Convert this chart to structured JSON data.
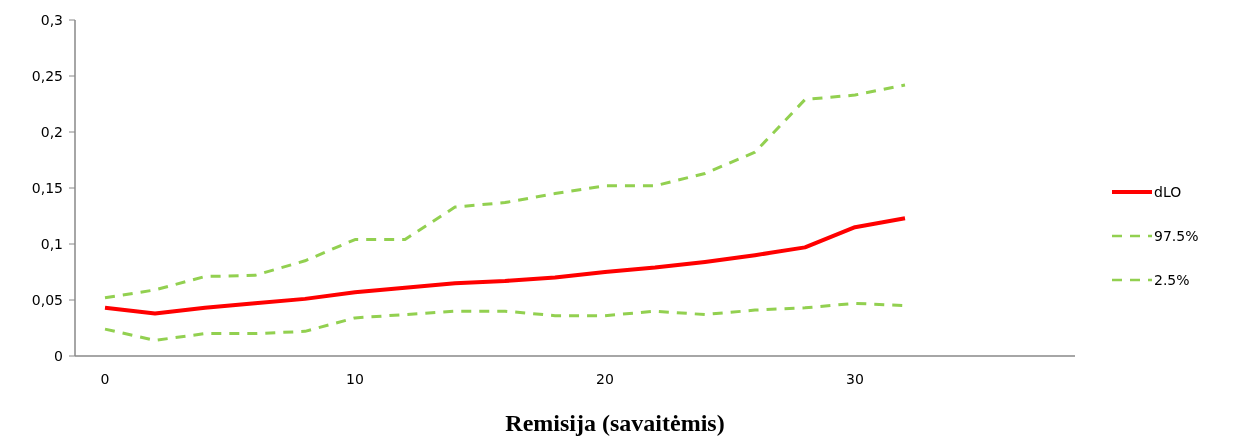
{
  "chart_data": {
    "type": "line",
    "xlabel": "Remisija (savaitėmis)",
    "x": [
      0,
      2,
      4,
      6,
      8,
      10,
      12,
      14,
      16,
      18,
      20,
      22,
      24,
      26,
      28,
      30,
      32
    ],
    "series": [
      {
        "name": "dLO",
        "color": "#ff0000",
        "line_style": "solid",
        "values": [
          0.043,
          0.038,
          0.043,
          0.047,
          0.051,
          0.057,
          0.061,
          0.065,
          0.067,
          0.07,
          0.075,
          0.079,
          0.084,
          0.09,
          0.097,
          0.115,
          0.123
        ]
      },
      {
        "name": "97.5%",
        "color": "#92d050",
        "line_style": "dashed",
        "values": [
          0.052,
          0.059,
          0.071,
          0.072,
          0.085,
          0.104,
          0.104,
          0.133,
          0.137,
          0.145,
          0.152,
          0.152,
          0.163,
          0.182,
          0.229,
          0.233,
          0.242
        ]
      },
      {
        "name": "2.5%",
        "color": "#92d050",
        "line_style": "dashed",
        "values": [
          0.024,
          0.014,
          0.02,
          0.02,
          0.022,
          0.034,
          0.037,
          0.04,
          0.04,
          0.036,
          0.036,
          0.04,
          0.037,
          0.041,
          0.043,
          0.047,
          0.045
        ]
      }
    ],
    "xlim": [
      -1.2,
      38.8
    ],
    "xticks": [
      0,
      10,
      20,
      30
    ],
    "ylim": [
      0,
      0.3
    ],
    "yticks": [
      0,
      {
        "value": 0.05,
        "label": "0,05"
      },
      {
        "value": 0.1,
        "label": "0,1"
      },
      {
        "value": 0.15,
        "label": "0,15"
      },
      {
        "value": 0.2,
        "label": "0,2"
      },
      {
        "value": 0.25,
        "label": "0,25"
      },
      {
        "value": 0.3,
        "label": "0,3"
      }
    ],
    "grid": false,
    "legend": "right",
    "marker": "none"
  }
}
